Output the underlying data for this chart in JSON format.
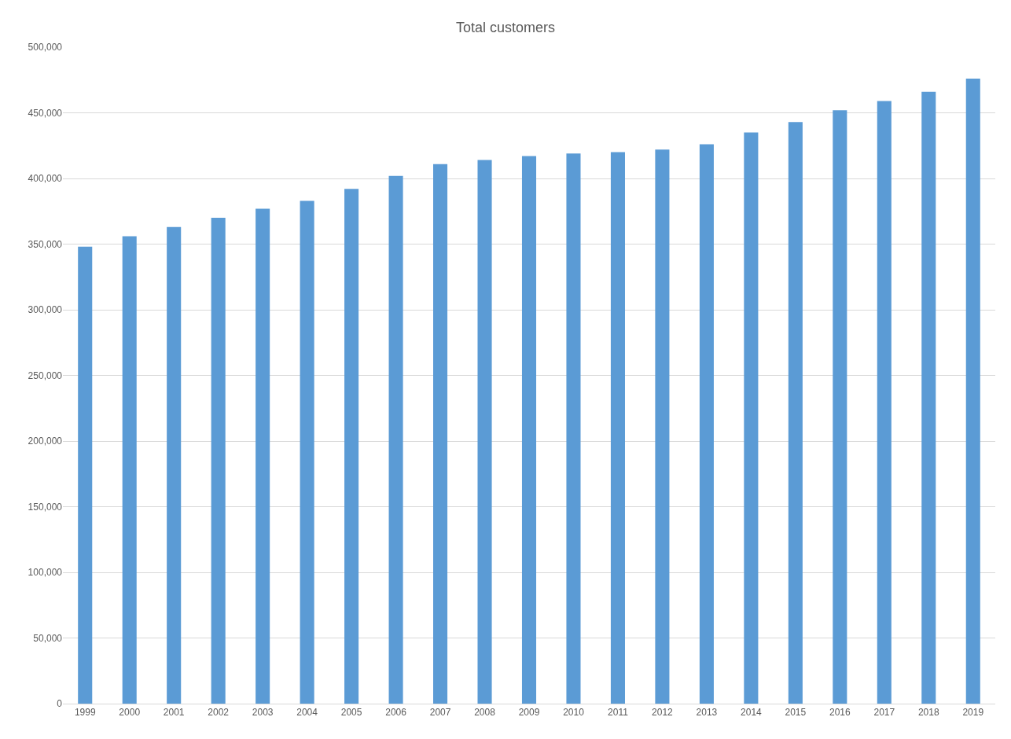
{
  "chart_data": {
    "type": "bar",
    "title": "Total customers",
    "categories": [
      "1999",
      "2000",
      "2001",
      "2002",
      "2003",
      "2004",
      "2005",
      "2006",
      "2007",
      "2008",
      "2009",
      "2010",
      "2011",
      "2012",
      "2013",
      "2014",
      "2015",
      "2016",
      "2017",
      "2018",
      "2019"
    ],
    "values": [
      348000,
      356000,
      363000,
      370000,
      377000,
      383000,
      392000,
      402000,
      411000,
      414000,
      417000,
      419000,
      420000,
      422000,
      426000,
      435000,
      443000,
      452000,
      459000,
      466000,
      476000
    ],
    "color": "#5b9bd5",
    "ylim": [
      0,
      500000
    ],
    "yticks": [
      {
        "value": 0,
        "label": "0"
      },
      {
        "value": 50000,
        "label": "50,000"
      },
      {
        "value": 100000,
        "label": "100,000"
      },
      {
        "value": 150000,
        "label": "150,000"
      },
      {
        "value": 200000,
        "label": "200,000"
      },
      {
        "value": 250000,
        "label": "250,000"
      },
      {
        "value": 300000,
        "label": "300,000"
      },
      {
        "value": 350000,
        "label": "350,000"
      },
      {
        "value": 400000,
        "label": "400,000"
      },
      {
        "value": 450000,
        "label": "450,000"
      },
      {
        "value": 500000,
        "label": "500,000"
      }
    ],
    "grid": "y"
  }
}
